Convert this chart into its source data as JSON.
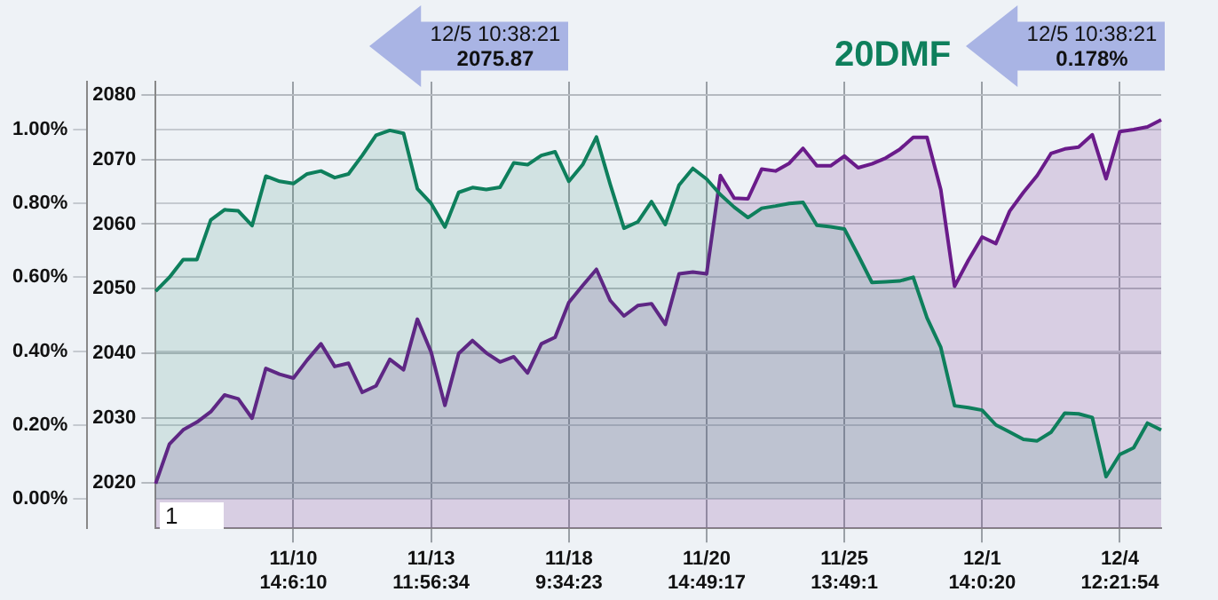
{
  "chart_data": {
    "type": "area",
    "annotations": [
      "12/5 10:38:21",
      "2075.87",
      "12/5 10:38:21",
      "0.178%",
      "1"
    ],
    "categories": [
      null,
      null,
      null,
      null,
      null,
      null,
      null,
      null,
      null,
      null,
      "11/10\n14:6:10",
      null,
      null,
      null,
      null,
      null,
      null,
      null,
      null,
      null,
      "11/13\n11:56:34",
      null,
      null,
      null,
      null,
      null,
      null,
      null,
      null,
      null,
      "11/18\n9:34:23",
      null,
      null,
      null,
      null,
      null,
      null,
      null,
      null,
      null,
      "11/20\n14:49:17",
      null,
      null,
      null,
      null,
      null,
      null,
      null,
      null,
      null,
      "11/25\n13:49:1",
      null,
      null,
      null,
      null,
      null,
      null,
      null,
      null,
      null,
      "12/1\n14:0:20",
      null,
      null,
      null,
      null,
      null,
      null,
      null,
      null,
      null,
      "12/4\n12:21:54",
      null,
      null,
      null
    ],
    "ylim": [
      2013,
      2082
    ],
    "yticks": [
      2020,
      2030,
      2040,
      2050,
      2060,
      2070,
      2080
    ],
    "y2lim": [
      -0.08,
      1.13
    ],
    "y2ticks": [
      {
        "value": 0,
        "label": "0.00%"
      },
      {
        "value": 0.2,
        "label": "0.20%"
      },
      {
        "value": 0.4,
        "label": "0.40%"
      },
      {
        "value": 0.6,
        "label": "0.60%"
      },
      {
        "value": 0.8,
        "label": "0.80%"
      },
      {
        "value": 1,
        "label": "1.00%"
      }
    ],
    "grid": true,
    "series": [
      {
        "color": "#6a1b8a",
        "values": [
          2019.9,
          2026,
          2028.2,
          2029.4,
          2031,
          2033.6,
          2033,
          2030,
          2037.7,
          2036.8,
          2036.2,
          2039,
          2041.5,
          2038,
          2038.5,
          2034,
          2035,
          2039.1,
          2037.5,
          2045.3,
          2040.2,
          2032,
          2040,
          2042,
          2040.1,
          2038.7,
          2039.5,
          2037,
          2041.5,
          2042.5,
          2047.9,
          2050.5,
          2053,
          2048.2,
          2045.8,
          2047.4,
          2047.7,
          2044.5,
          2052.3,
          2052.6,
          2052.3,
          2067.5,
          2064,
          2063.9,
          2068.5,
          2068.2,
          2069.4,
          2071.7,
          2069,
          2069,
          2070.5,
          2068.7,
          2069.3,
          2070.2,
          2071.5,
          2073.4,
          2073.4,
          2065.3,
          2050.4,
          2054.4,
          2058,
          2057,
          2062,
          2064.9,
          2067.5,
          2070.9,
          2071.6,
          2071.9,
          2073.8,
          2067,
          2074.3,
          2074.6,
          2075,
          2076.1
        ]
      },
      {
        "name": "20DMF",
        "color": "#0e7f5c",
        "axis": "y2",
        "values": [
          0.562,
          0.6,
          0.648,
          0.648,
          0.755,
          0.783,
          0.78,
          0.74,
          0.874,
          0.86,
          0.854,
          0.88,
          0.888,
          0.87,
          0.88,
          0.93,
          0.985,
          0.998,
          0.99,
          0.84,
          0.8,
          0.736,
          0.83,
          0.843,
          0.838,
          0.844,
          0.91,
          0.905,
          0.93,
          0.94,
          0.86,
          0.905,
          0.98,
          0.852,
          0.733,
          0.75,
          0.805,
          0.743,
          0.85,
          0.895,
          0.866,
          0.824,
          0.79,
          0.762,
          0.787,
          0.793,
          0.8,
          0.803,
          0.741,
          0.737,
          0.731,
          0.66,
          0.586,
          0.588,
          0.59,
          0.6,
          0.49,
          0.41,
          0.252,
          0.247,
          0.24,
          0.2,
          0.181,
          0.161,
          0.157,
          0.18,
          0.232,
          0.23,
          0.22,
          0.06,
          0.12,
          0.138,
          0.205,
          0.186
        ]
      }
    ]
  }
}
